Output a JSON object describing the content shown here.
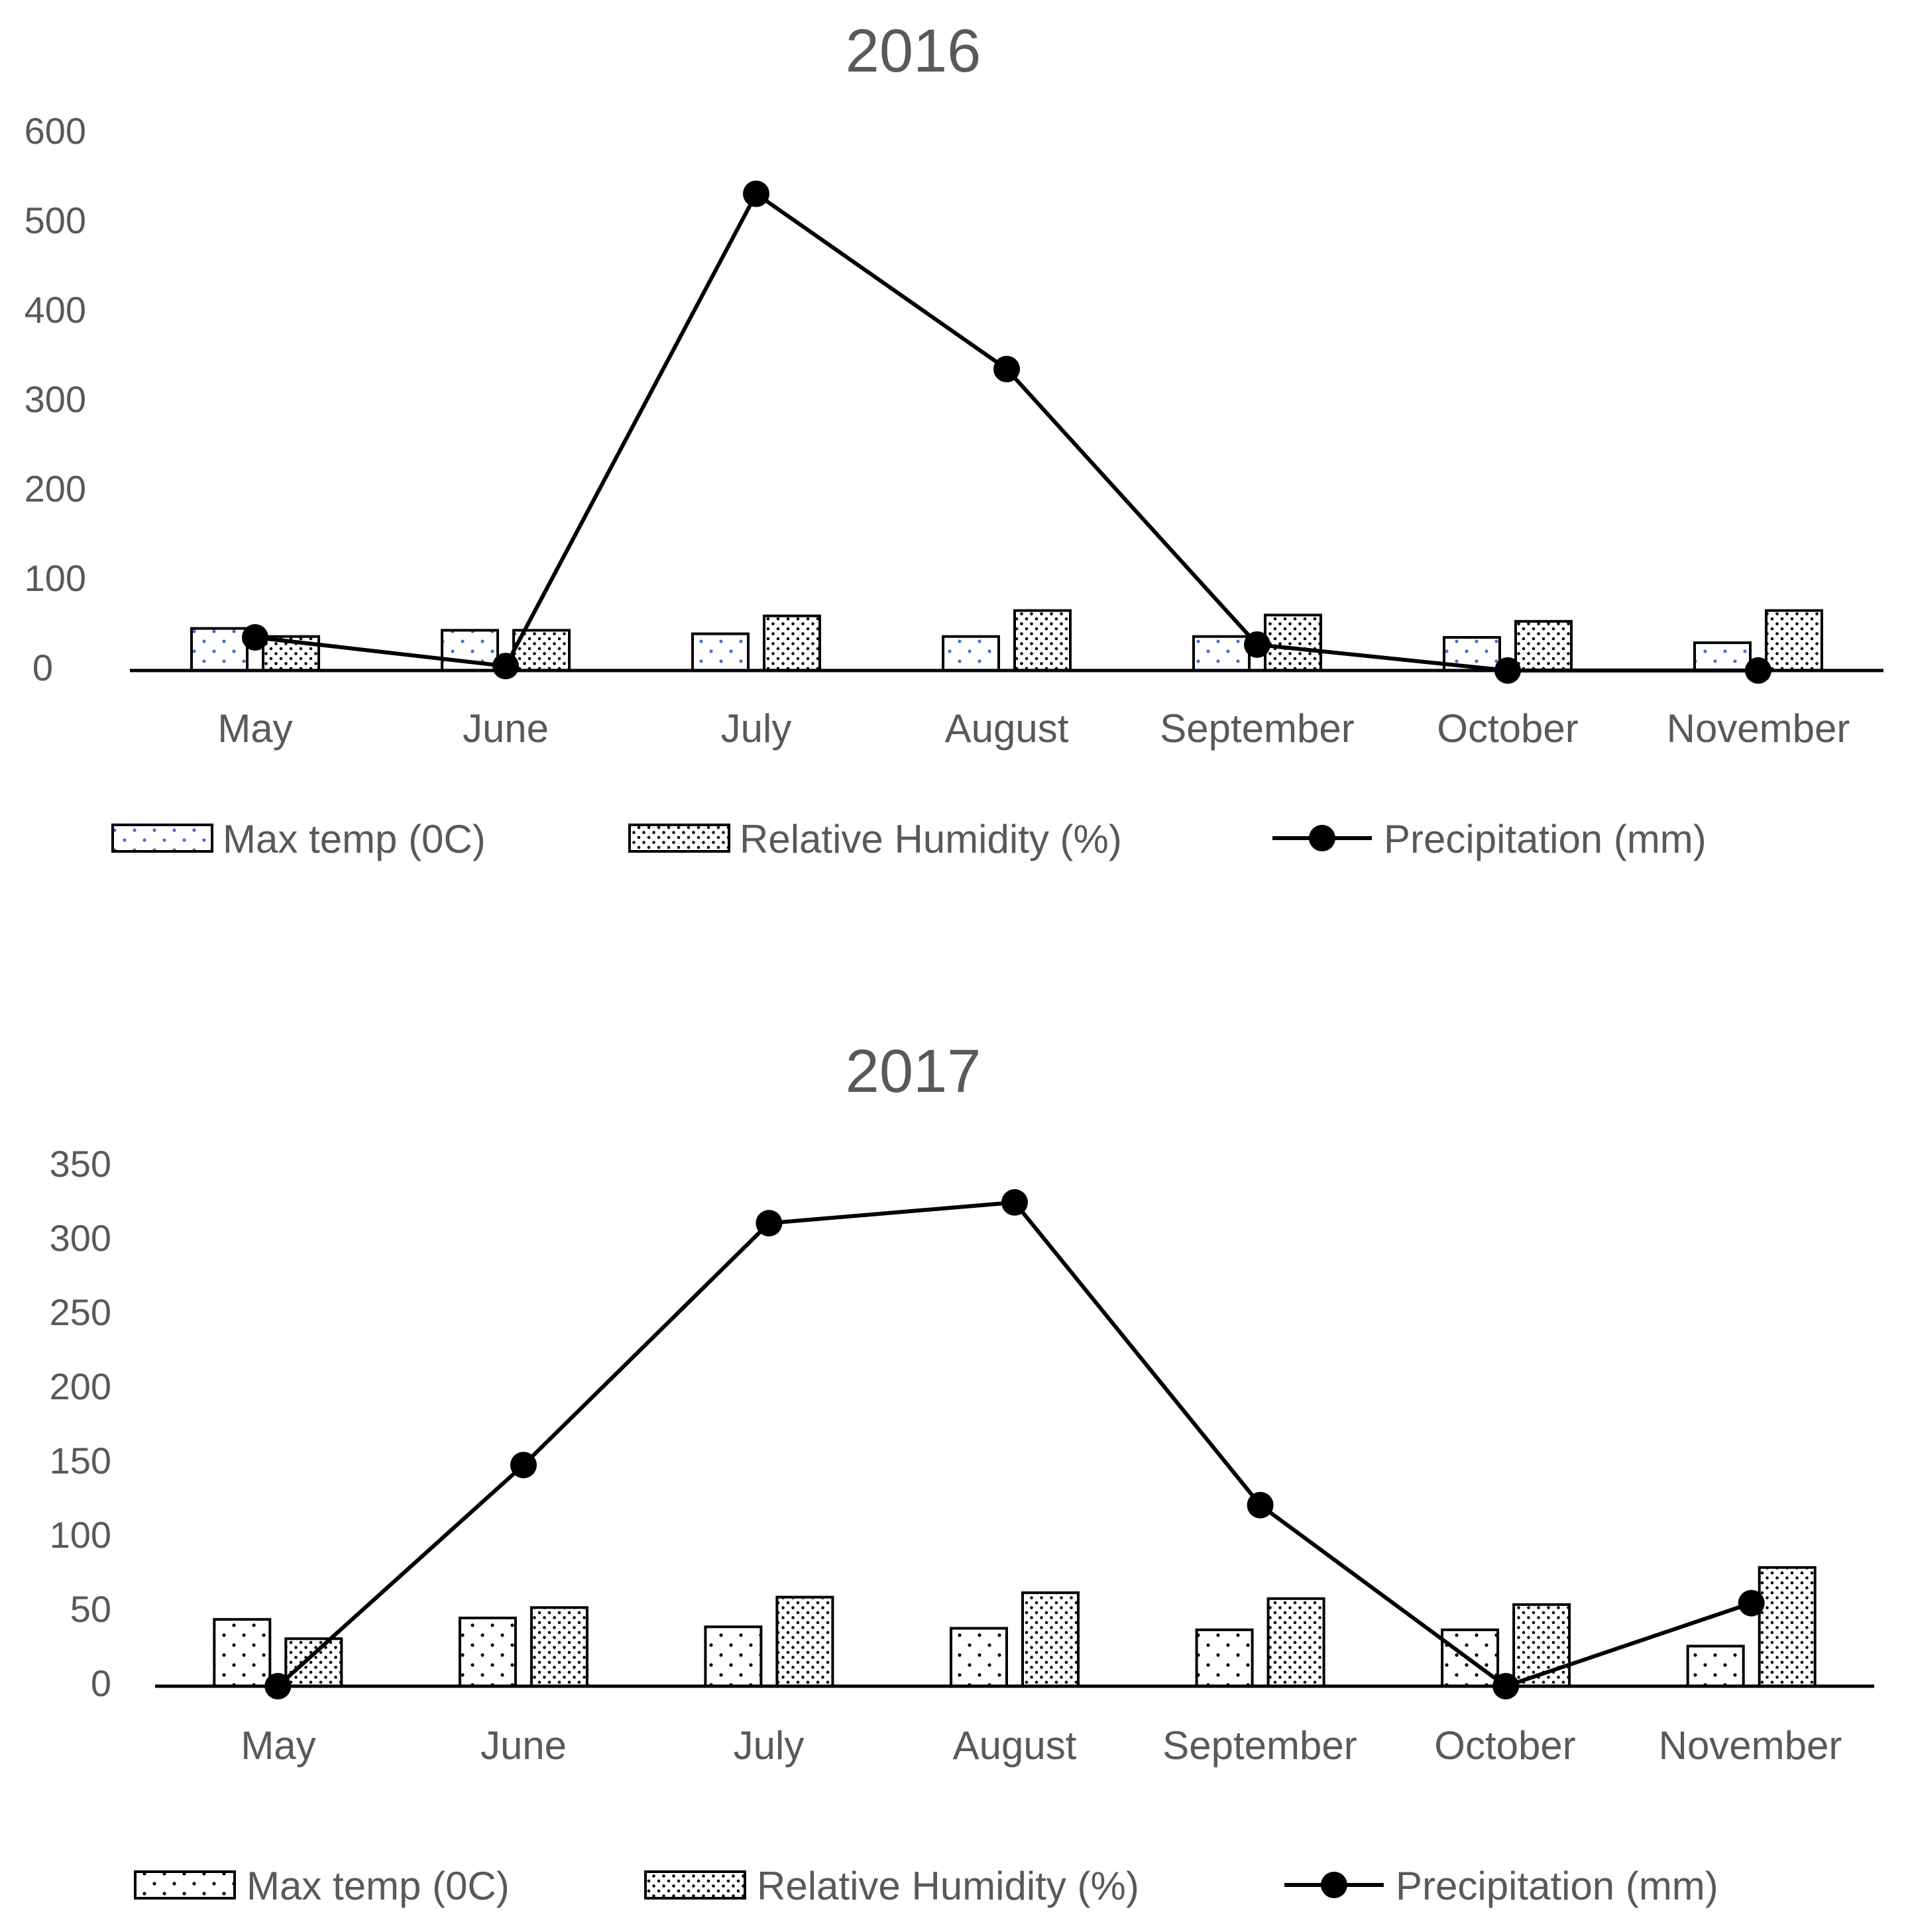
{
  "chart_data": [
    {
      "type": "bar",
      "title": "2016",
      "categories": [
        "May",
        "June",
        "July",
        "August",
        "September",
        "October",
        "November"
      ],
      "ylim": [
        0,
        600
      ],
      "yticks": [
        0,
        100,
        200,
        300,
        400,
        500,
        600
      ],
      "xlabel": "",
      "ylabel": "",
      "grid": false,
      "legend_position": "bottom",
      "series": [
        {
          "name": "Max temp (0C)",
          "kind": "bar",
          "pattern": "sparse-dots-blue",
          "values": [
            47,
            45,
            41,
            38,
            38,
            37,
            31
          ]
        },
        {
          "name": "Relative Humidity (%)",
          "kind": "bar",
          "pattern": "dense-dots",
          "values": [
            38,
            45,
            61,
            67,
            62,
            55,
            67
          ]
        },
        {
          "name": "Precipitation (mm)",
          "kind": "line",
          "marker": "circle",
          "values": [
            37,
            5,
            533,
            337,
            29,
            0,
            0
          ]
        }
      ]
    },
    {
      "type": "bar",
      "title": "2017",
      "categories": [
        "May",
        "June",
        "July",
        "August",
        "September",
        "October",
        "November"
      ],
      "ylim": [
        0,
        350
      ],
      "yticks": [
        0,
        50,
        100,
        150,
        200,
        250,
        300,
        350
      ],
      "xlabel": "",
      "ylabel": "",
      "grid": false,
      "legend_position": "bottom",
      "series": [
        {
          "name": "Max temp (0C)",
          "kind": "bar",
          "pattern": "sparse-dots",
          "values": [
            45,
            46,
            40,
            39,
            38,
            38,
            27
          ]
        },
        {
          "name": "Relative Humidity (%)",
          "kind": "bar",
          "pattern": "dense-dots",
          "values": [
            32,
            53,
            60,
            63,
            59,
            55,
            80
          ]
        },
        {
          "name": "Precipitation (mm)",
          "kind": "line",
          "marker": "circle",
          "values": [
            0,
            149,
            312,
            326,
            122,
            0,
            56
          ]
        }
      ]
    }
  ],
  "colors": {
    "axis": "#000000",
    "text": "#595959",
    "bar_stroke": "#000000",
    "bar_fill": "#ffffff",
    "dot_blue": "#4472c4",
    "dot_black": "#000000",
    "line": "#000000"
  }
}
